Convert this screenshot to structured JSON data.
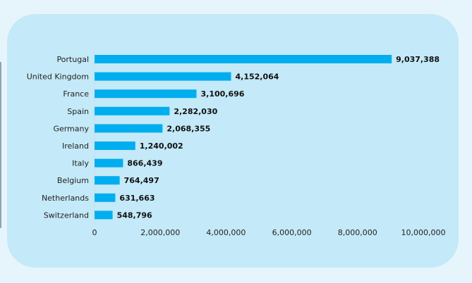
{
  "chart_data": {
    "type": "bar",
    "orientation": "horizontal",
    "categories": [
      "Portugal",
      "United Kingdom",
      "France",
      "Spain",
      "Germany",
      "Ireland",
      "Italy",
      "Belgium",
      "Netherlands",
      "Switzerland"
    ],
    "values": [
      9037388,
      4152064,
      3100696,
      2282030,
      2068355,
      1240002,
      866439,
      764497,
      631663,
      548796
    ],
    "value_labels": [
      "9,037,388",
      "4,152,064",
      "3,100,696",
      "2,282,030",
      "2,068,355",
      "1,240,002",
      "866,439",
      "764,497",
      "631,663",
      "548,796"
    ],
    "x_ticks": [
      0,
      2000000,
      4000000,
      6000000,
      8000000,
      10000000
    ],
    "x_tick_labels": [
      "0",
      "2,000,000",
      "4,000,000",
      "6,000,000",
      "8,000,000",
      "10,000,000"
    ],
    "xlim": [
      0,
      10000000
    ],
    "title": "",
    "xlabel": "",
    "ylabel": "",
    "grid": false,
    "bar_color": "#00aeef",
    "card_color": "#c4e9f8",
    "background_color": "#e6f5fc"
  }
}
